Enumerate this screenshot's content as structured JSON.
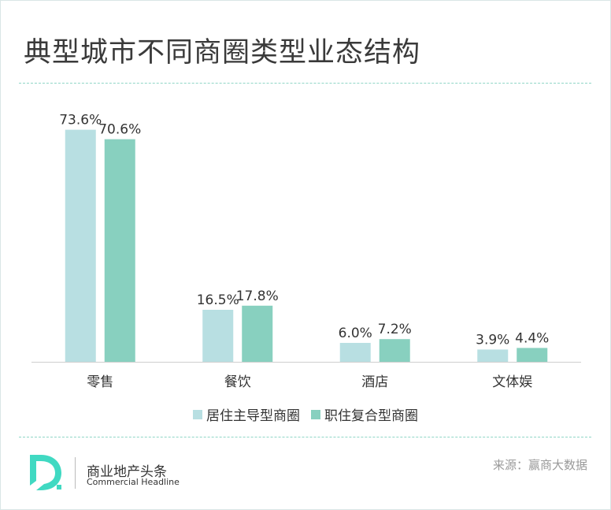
{
  "title": "典型城市不同商圈类型业态结构",
  "chart_data": {
    "type": "bar",
    "categories": [
      "零售",
      "餐饮",
      "酒店",
      "文体娱"
    ],
    "series": [
      {
        "name": "居住主导型商圈",
        "values": [
          73.6,
          16.5,
          6.0,
          3.9
        ],
        "labels": [
          "73.6%",
          "16.5%",
          "6.0%",
          "3.9%"
        ],
        "color": "#b8dfe2"
      },
      {
        "name": "职住复合型商圈",
        "values": [
          70.6,
          17.8,
          7.2,
          4.4
        ],
        "labels": [
          "70.6%",
          "17.8%",
          "7.2%",
          "4.4%"
        ],
        "color": "#88d0bf"
      }
    ],
    "ylim": [
      0,
      80
    ],
    "grid": false,
    "legend_position": "bottom"
  },
  "footer": {
    "brand_cn": "商业地产头条",
    "brand_en": "Commercial Headline",
    "source": "来源：赢商大数据"
  },
  "colors": {
    "accent": "#40d9c2",
    "divider": "#8fd6c6"
  }
}
